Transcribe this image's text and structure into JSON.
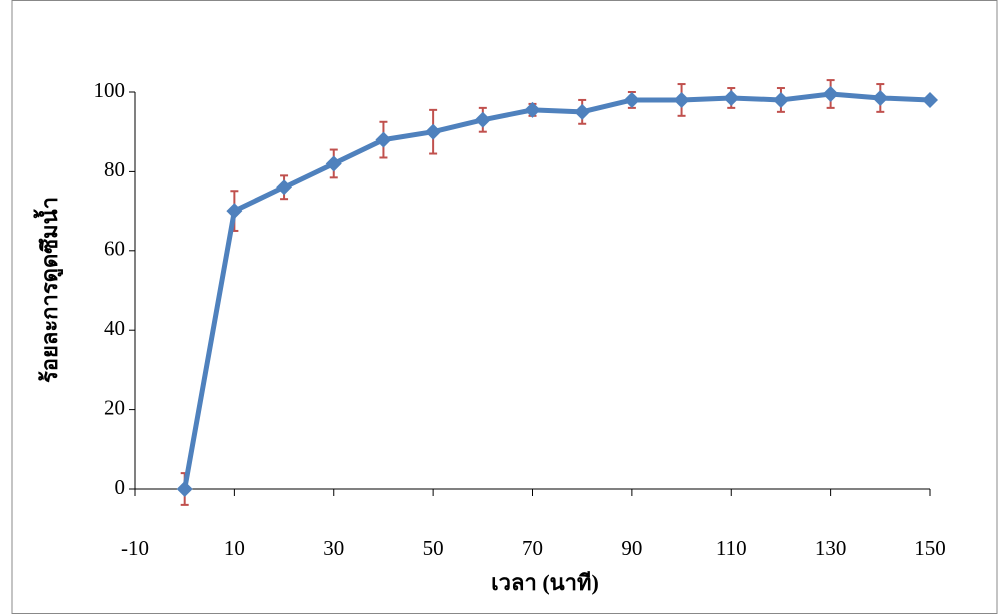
{
  "chart_data": {
    "type": "line",
    "x_label": "เวลา (นาที)",
    "y_label": "ร้อยละการดูดซึมน้ำ",
    "x": [
      0,
      10,
      20,
      30,
      40,
      50,
      60,
      70,
      80,
      90,
      100,
      110,
      120,
      130,
      140,
      150
    ],
    "series": [
      {
        "color": "#4f81bd",
        "error_color": "#c0504d",
        "values": [
          0,
          70,
          76,
          82,
          88,
          90,
          93,
          95.5,
          95,
          98,
          98,
          98.5,
          98,
          99.5,
          98.5,
          98
        ],
        "errors": [
          4,
          5,
          3,
          3.5,
          4.5,
          5.5,
          3,
          1.5,
          3,
          2,
          4,
          2.5,
          3,
          3.5,
          3.5,
          0
        ]
      }
    ],
    "xlim": [
      -10,
      150
    ],
    "xticks": [
      -10,
      10,
      30,
      50,
      70,
      90,
      110,
      130,
      150
    ],
    "ylim": [
      0,
      100
    ],
    "yticks": [
      0,
      20,
      40,
      60,
      80,
      100
    ]
  }
}
